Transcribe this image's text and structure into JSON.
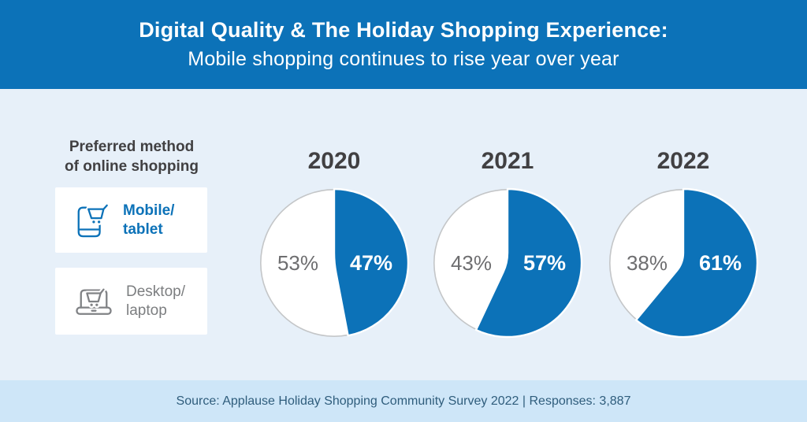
{
  "header": {
    "title": "Digital Quality & The Holiday Shopping Experience:",
    "subtitle": "Mobile shopping continues to rise year over year"
  },
  "legend": {
    "title_lines": [
      "Preferred method",
      "of online shopping"
    ],
    "items": [
      {
        "id": "mobile-tablet",
        "lines": [
          "Mobile/",
          "tablet"
        ],
        "icon": "phone-cart-icon",
        "color": "#0c72b8"
      },
      {
        "id": "desktop-laptop",
        "lines": [
          "Desktop/",
          "laptop"
        ],
        "icon": "laptop-cart-icon",
        "color": "#7c7e80"
      }
    ]
  },
  "chart_data": {
    "type": "pie",
    "title": "Preferred method of online shopping",
    "legend_position": "left",
    "categories": [
      "2020",
      "2021",
      "2022"
    ],
    "series": [
      {
        "name": "Mobile/tablet",
        "values": [
          47,
          57,
          61
        ],
        "color": "#0c72b8",
        "label_color": "#ffffff"
      },
      {
        "name": "Desktop/laptop",
        "values": [
          53,
          43,
          38
        ],
        "color": "#ffffff",
        "label_color": "#6e6e70"
      }
    ],
    "value_suffix": "%"
  },
  "footer": {
    "source_line": "Source: Applause Holiday Shopping Community Survey 2022 | Responses: 3,887"
  },
  "colors": {
    "header_bg": "#0c72b8",
    "body_bg": "#e7f0f9",
    "footer_bg": "#cee6f8",
    "accent_blue": "#0c72b8",
    "pie_white": "#ffffff",
    "pie_stroke": "#c4c6c8",
    "slice_gap": "#ffffff",
    "text_dark": "#414042",
    "text_gray": "#6e6e70",
    "footer_text": "#2f5d7c"
  }
}
